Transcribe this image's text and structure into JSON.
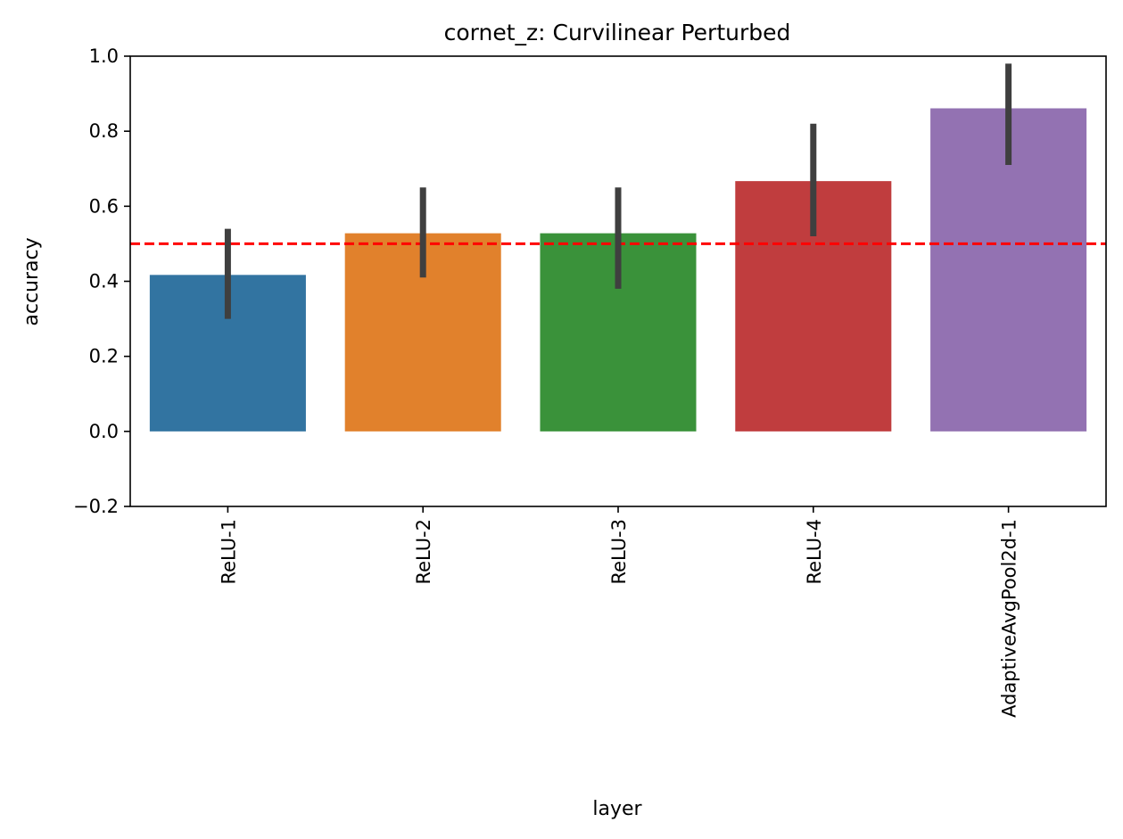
{
  "chart_data": {
    "type": "bar",
    "title": "cornet_z: Curvilinear Perturbed",
    "xlabel": "layer",
    "ylabel": "accuracy",
    "categories": [
      "ReLU-1",
      "ReLU-2",
      "ReLU-3",
      "ReLU-4",
      "AdaptiveAvgPool2d-1"
    ],
    "values": [
      0.417,
      0.528,
      0.528,
      0.667,
      0.861
    ],
    "error_low": [
      0.3,
      0.41,
      0.38,
      0.52,
      0.71
    ],
    "error_high": [
      0.54,
      0.65,
      0.65,
      0.82,
      0.98
    ],
    "bar_colors": [
      "#3274a1",
      "#e1812c",
      "#3a923a",
      "#c03d3e",
      "#9372b2"
    ],
    "error_bar_color": "#3f3f3f",
    "ylim": [
      -0.2,
      1.0
    ],
    "yticks": [
      -0.2,
      0.0,
      0.2,
      0.4,
      0.6,
      0.8,
      1.0
    ],
    "ytick_labels": [
      "−0.2",
      "0.0",
      "0.2",
      "0.4",
      "0.6",
      "0.8",
      "1.0"
    ],
    "reference_line": {
      "y": 0.5,
      "color": "#ff0000",
      "style": "dashed"
    },
    "grid": false,
    "x_tick_rotation": "vertical"
  }
}
